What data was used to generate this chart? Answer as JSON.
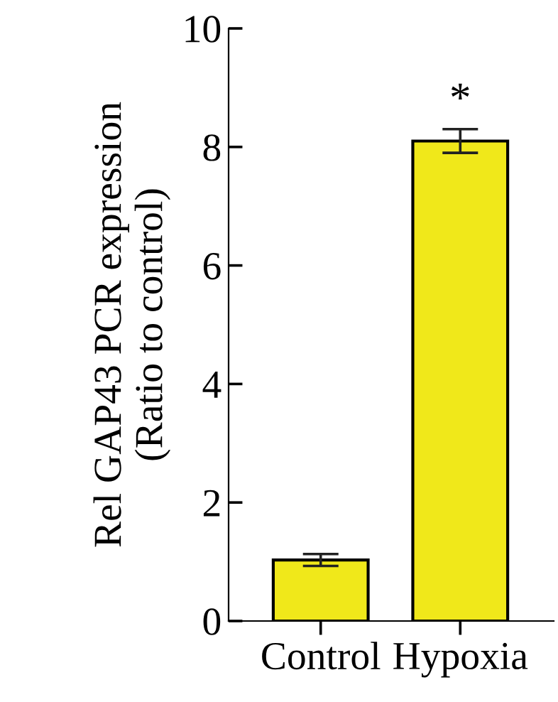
{
  "chart_data": {
    "type": "bar",
    "ylabel": "Rel GAP43 PCR expression\n(Ratio to control)",
    "categories": [
      "Control",
      "Hypoxia"
    ],
    "series": [
      {
        "color": "#f0e81a",
        "values": [
          1.03,
          8.1
        ],
        "errors": [
          0.1,
          0.2
        ]
      }
    ],
    "ylim": [
      0,
      10
    ],
    "yticks": [
      0,
      2,
      4,
      6,
      8,
      10
    ],
    "grid": false,
    "annotations": [
      "*"
    ]
  }
}
